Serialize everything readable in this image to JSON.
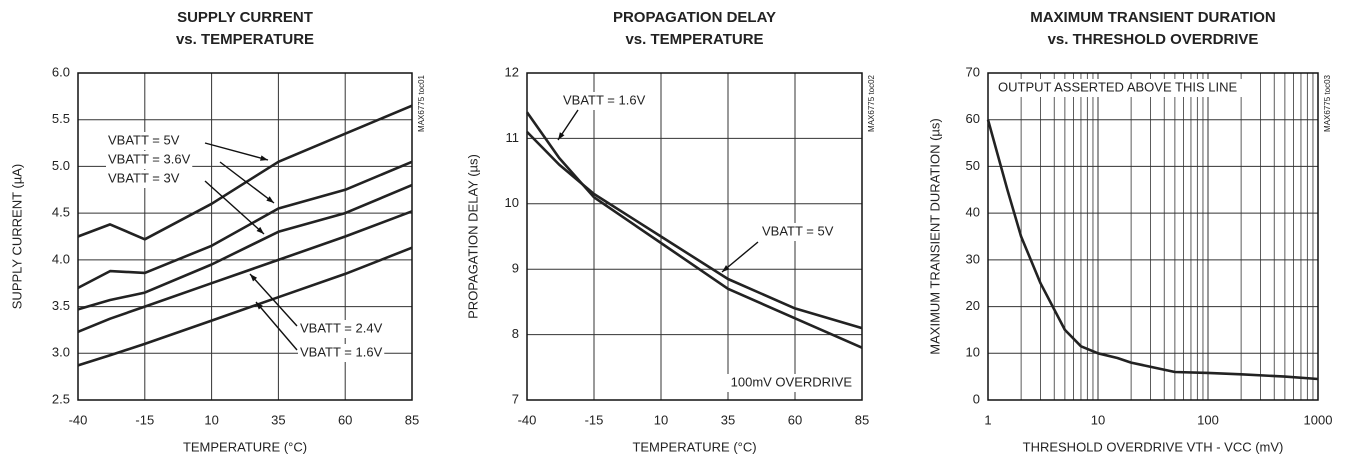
{
  "chart_data": [
    {
      "type": "line",
      "title": [
        "SUPPLY CURRENT",
        "vs. TEMPERATURE"
      ],
      "xlabel": "TEMPERATURE (°C)",
      "ylabel": "SUPPLY CURRENT (µA)",
      "id_label": "MAX6775 toc01",
      "x": [
        -40,
        -28,
        -15,
        10,
        35,
        60,
        85
      ],
      "xlim": [
        -40,
        85
      ],
      "xticks": [
        -40,
        -15,
        10,
        35,
        60,
        85
      ],
      "ylim": [
        2.5,
        6.0
      ],
      "yticks": [
        {
          "value": 2.5,
          "label": "2.5"
        },
        {
          "value": 3.0,
          "label": "3.0"
        },
        {
          "value": 3.5,
          "label": "3.5"
        },
        {
          "value": 4.0,
          "label": "4.0"
        },
        {
          "value": 4.5,
          "label": "4.5"
        },
        {
          "value": 5.0,
          "label": "5.0"
        },
        {
          "value": 5.5,
          "label": "5.5"
        },
        {
          "value": 6.0,
          "label": "6.0"
        }
      ],
      "grid": true,
      "series": [
        {
          "name": "VBATT = 5V",
          "color": "#222222",
          "values": [
            4.25,
            4.38,
            4.22,
            4.6,
            5.05,
            5.35,
            5.65
          ]
        },
        {
          "name": "VBATT = 3.6V",
          "color": "#222222",
          "values": [
            3.7,
            3.88,
            3.86,
            4.15,
            4.55,
            4.75,
            5.05
          ]
        },
        {
          "name": "VBATT = 3V",
          "color": "#222222",
          "values": [
            3.47,
            3.57,
            3.65,
            3.95,
            4.3,
            4.5,
            4.8
          ]
        },
        {
          "name": "VBATT = 2.4V",
          "color": "#222222",
          "values": [
            3.23,
            3.37,
            3.5,
            3.75,
            4.0,
            4.25,
            4.52
          ]
        },
        {
          "name": "VBATT = 1.6V",
          "color": "#222222",
          "values": [
            2.87,
            2.98,
            3.1,
            3.35,
            3.6,
            3.85,
            4.13
          ]
        }
      ]
    },
    {
      "type": "line",
      "title": [
        "PROPAGATION DELAY",
        "vs. TEMPERATURE"
      ],
      "xlabel": "TEMPERATURE (°C)",
      "ylabel": "PROPAGATION DELAY (µs)",
      "id_label": "MAX6775 toc02",
      "annotation": "100mV OVERDRIVE",
      "x": [
        -40,
        -28,
        -15,
        10,
        35,
        60,
        85
      ],
      "xlim": [
        -40,
        85
      ],
      "xticks": [
        -40,
        -15,
        10,
        35,
        60,
        85
      ],
      "ylim": [
        7,
        12
      ],
      "yticks": [
        7,
        8,
        9,
        10,
        11,
        12
      ],
      "grid": true,
      "series": [
        {
          "name": "VBATT = 1.6V",
          "color": "#222222",
          "values": [
            11.4,
            10.7,
            10.1,
            9.4,
            8.7,
            8.25,
            7.8
          ]
        },
        {
          "name": "VBATT = 5V",
          "color": "#222222",
          "values": [
            11.1,
            10.6,
            10.15,
            9.5,
            8.85,
            8.4,
            8.1
          ]
        }
      ]
    },
    {
      "type": "line",
      "title": [
        "MAXIMUM TRANSIENT DURATION",
        "vs. THRESHOLD OVERDRIVE"
      ],
      "xlabel": "THRESHOLD OVERDRIVE VTH - VCC (mV)",
      "ylabel": "MAXIMUM TRANSIENT DURATION (µs)",
      "id_label": "MAX6775 toc03",
      "annotation": "OUTPUT ASSERTED ABOVE THIS LINE",
      "x": [
        1,
        1.5,
        2,
        3,
        5,
        7,
        10,
        15,
        20,
        50,
        100,
        200,
        500,
        1000
      ],
      "xlim": [
        1,
        1000
      ],
      "xticks": [
        1,
        10,
        100,
        1000
      ],
      "xlog": true,
      "minor_grid": true,
      "ylim": [
        0,
        70
      ],
      "yticks": [
        0,
        10,
        20,
        30,
        40,
        50,
        60,
        70
      ],
      "grid": true,
      "series": [
        {
          "name": "duration",
          "color": "#222222",
          "values": [
            60,
            45,
            35,
            25,
            15,
            11.5,
            10,
            9,
            8,
            6,
            5.8,
            5.5,
            5,
            4.5
          ]
        }
      ]
    }
  ]
}
